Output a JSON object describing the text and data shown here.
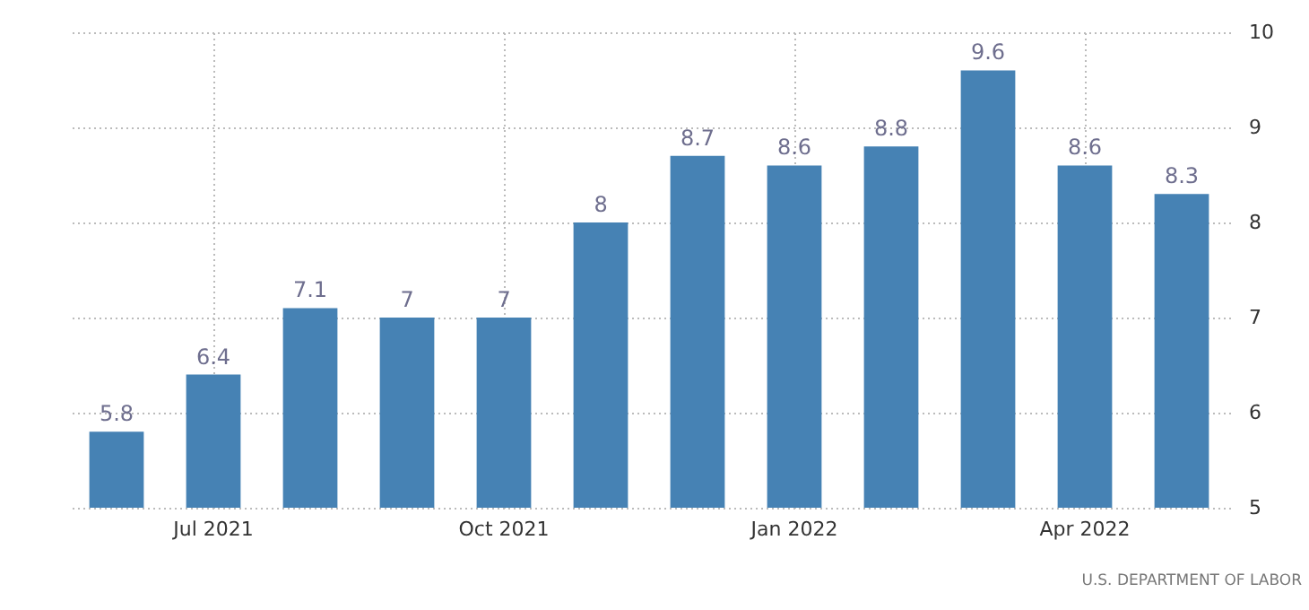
{
  "chart_data": {
    "type": "bar",
    "categories": [
      null,
      "Jul 2021",
      null,
      null,
      "Oct 2021",
      null,
      null,
      "Jan 2022",
      null,
      null,
      "Apr 2022",
      null
    ],
    "values": [
      5.8,
      6.4,
      7.1,
      7,
      7,
      8,
      8.7,
      8.6,
      8.8,
      9.6,
      8.6,
      8.3
    ],
    "color": "#4682b4",
    "ylim": [
      5,
      10
    ],
    "yticks": [
      5,
      6,
      7,
      8,
      9,
      10
    ],
    "grid": true,
    "data_labels": true,
    "annotations": [
      "U.S. DEPARTMENT OF LABOR"
    ]
  }
}
